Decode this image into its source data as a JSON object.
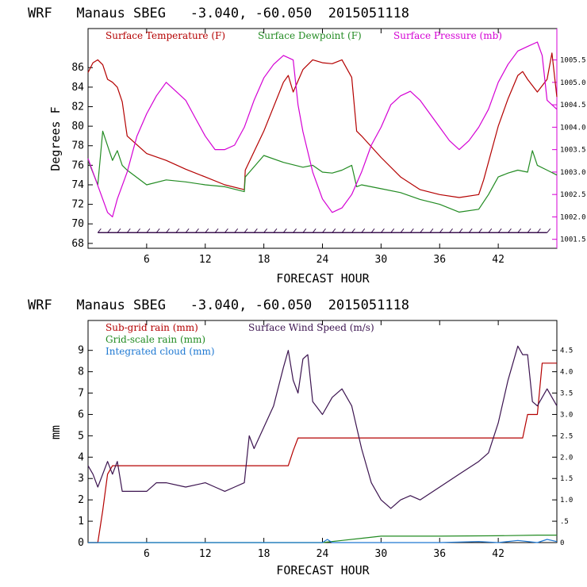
{
  "chart_data": [
    {
      "type": "line",
      "title": "WRF   Manaus SBEG   -3.040, -60.050  2015051118",
      "xlabel": "FORECAST HOUR",
      "ylabel": "Degrees F",
      "xlim": [
        0,
        48
      ],
      "ylim": [
        67.5,
        90
      ],
      "y2lim": [
        1001.3,
        1006.2
      ],
      "x_ticks": [
        "6",
        "12",
        "18",
        "24",
        "30",
        "36",
        "42"
      ],
      "y_ticks": [
        "68",
        "70",
        "72",
        "74",
        "76",
        "78",
        "80",
        "82",
        "84",
        "86"
      ],
      "y2_ticks": [
        "1001.5",
        "1002.0",
        "1002.5",
        "1003.0",
        "1003.5",
        "1004.0",
        "1004.5",
        "1005.0",
        "1005.5"
      ],
      "grid": false,
      "legend_position": "top",
      "series": [
        {
          "name": "Surface Temperature (F)",
          "color": "#b40000",
          "axis": "left",
          "x": [
            0,
            0.5,
            1,
            1.5,
            2,
            2.5,
            3,
            3.5,
            4,
            6,
            8,
            10,
            12,
            14,
            16,
            16.1,
            18,
            20,
            20.5,
            21,
            22,
            23,
            24,
            25,
            26,
            27,
            27.5,
            28,
            30,
            32,
            34,
            36,
            38,
            40,
            40.5,
            42,
            43,
            44,
            44.5,
            45,
            46,
            47,
            47.5,
            48
          ],
          "values": [
            85.5,
            86.5,
            86.8,
            86.3,
            84.8,
            84.5,
            84,
            82.5,
            79,
            77.2,
            76.5,
            75.6,
            74.8,
            74,
            73.5,
            75.5,
            79.5,
            84.5,
            85.2,
            83.5,
            85.8,
            86.8,
            86.5,
            86.4,
            86.8,
            85,
            79.5,
            79,
            76.8,
            74.8,
            73.5,
            73,
            72.7,
            73,
            74.5,
            80,
            82.8,
            85.2,
            85.6,
            84.8,
            83.5,
            84.8,
            87.5,
            83
          ]
        },
        {
          "name": "Surface Dewpoint (F)",
          "color": "#228b22",
          "axis": "left",
          "x": [
            0,
            1,
            1.5,
            2,
            2.5,
            3,
            3.5,
            4,
            6,
            8,
            10,
            12,
            14,
            16,
            16.1,
            18,
            20,
            22,
            23,
            24,
            25,
            26,
            27,
            27.5,
            28,
            30,
            32,
            34,
            36,
            38,
            40,
            41,
            42,
            43,
            44,
            45,
            45.5,
            46,
            47,
            48
          ],
          "values": [
            76.5,
            74,
            79.5,
            78,
            76.5,
            77.5,
            76,
            75.5,
            74,
            74.5,
            74.3,
            74,
            73.8,
            73.3,
            74.8,
            77,
            76.3,
            75.8,
            76,
            75.3,
            75.2,
            75.5,
            76,
            73.8,
            74,
            73.6,
            73.2,
            72.5,
            72,
            71.2,
            71.5,
            73,
            74.8,
            75.2,
            75.5,
            75.3,
            77.5,
            76,
            75.5,
            75
          ]
        },
        {
          "name": "Surface Pressure (mb)",
          "color": "#d400d4",
          "axis": "right",
          "x": [
            0,
            1,
            2,
            2.5,
            3,
            4,
            5,
            6,
            7,
            8,
            9,
            10,
            11,
            12,
            13,
            14,
            15,
            16,
            17,
            18,
            19,
            20,
            21,
            21.5,
            22,
            23,
            24,
            25,
            26,
            27,
            28,
            29,
            30,
            31,
            32,
            33,
            34,
            35,
            36,
            37,
            38,
            39,
            40,
            41,
            42,
            43,
            44,
            45,
            46,
            46.5,
            47,
            48
          ],
          "values": [
            1003.3,
            1002.7,
            1002.1,
            1002.0,
            1002.4,
            1003.0,
            1003.8,
            1004.3,
            1004.7,
            1005.0,
            1004.8,
            1004.6,
            1004.2,
            1003.8,
            1003.5,
            1003.5,
            1003.6,
            1004.0,
            1004.6,
            1005.1,
            1005.4,
            1005.6,
            1005.5,
            1004.5,
            1003.9,
            1003.0,
            1002.4,
            1002.1,
            1002.2,
            1002.5,
            1003.0,
            1003.6,
            1004.0,
            1004.5,
            1004.7,
            1004.8,
            1004.6,
            1004.3,
            1004.0,
            1003.7,
            1003.5,
            1003.7,
            1004.0,
            1004.4,
            1005.0,
            1005.4,
            1005.7,
            1005.8,
            1005.9,
            1005.6,
            1004.6,
            1004.4
          ]
        }
      ],
      "wind_barbs": {
        "color": "#3c1450",
        "level": 69.1,
        "hours": [
          1,
          2,
          3,
          4,
          5,
          6,
          7,
          8,
          9,
          10,
          11,
          12,
          13,
          14,
          15,
          16,
          17,
          18,
          19,
          20,
          21,
          22,
          23,
          24,
          25,
          26,
          27,
          28,
          29,
          30,
          31,
          32,
          33,
          34,
          35,
          36,
          37,
          38,
          39,
          40,
          41,
          42,
          43,
          44,
          45,
          46,
          47
        ]
      }
    },
    {
      "type": "line",
      "title": "WRF   Manaus SBEG   -3.040, -60.050  2015051118",
      "xlabel": "FORECAST HOUR",
      "ylabel": "mm",
      "xlim": [
        0,
        48
      ],
      "ylim": [
        0,
        10.4
      ],
      "y2lim": [
        0,
        5.2
      ],
      "x_ticks": [
        "6",
        "12",
        "18",
        "24",
        "30",
        "36",
        "42"
      ],
      "y_ticks": [
        "0",
        "1",
        "2",
        "3",
        "4",
        "5",
        "6",
        "7",
        "8",
        "9"
      ],
      "y2_ticks": [
        "0",
        ".5",
        "1.0",
        "1.5",
        "2.0",
        "2.5",
        "3.0",
        "3.5",
        "4.0",
        "4.5"
      ],
      "grid": false,
      "legend_position": "top-left",
      "series": [
        {
          "name": "Sub-grid rain (mm)",
          "color": "#b40000",
          "axis": "left",
          "x": [
            0,
            1,
            1.5,
            2,
            2.5,
            3,
            16,
            20.5,
            21,
            21.5,
            41,
            44.5,
            45,
            46,
            46.5,
            48
          ],
          "values": [
            0,
            0,
            1.5,
            3.2,
            3.6,
            3.6,
            3.6,
            3.6,
            4.3,
            4.9,
            4.9,
            4.9,
            6,
            6,
            8.4,
            8.4
          ]
        },
        {
          "name": "Grid-scale rain (mm)",
          "color": "#228b22",
          "axis": "left",
          "x": [
            0,
            24,
            26,
            28,
            30,
            36,
            42,
            46,
            48
          ],
          "values": [
            0,
            0,
            0.1,
            0.2,
            0.3,
            0.3,
            0.32,
            0.35,
            0.35
          ]
        },
        {
          "name": "Integrated cloud (mm)",
          "color": "#1e78d2",
          "axis": "left",
          "x": [
            0,
            20,
            24,
            24.5,
            25,
            30,
            36,
            40,
            42,
            44,
            46,
            47,
            48
          ],
          "values": [
            0,
            0,
            0,
            0.15,
            0,
            0,
            0,
            0.05,
            0,
            0.1,
            0,
            0.15,
            0.05
          ]
        },
        {
          "name": "Surface Wind Speed (m/s)",
          "color": "#3c1450",
          "axis": "right",
          "x": [
            0,
            0.5,
            1,
            2,
            2.5,
            3,
            3.5,
            4,
            6,
            7,
            8,
            10,
            12,
            13,
            14,
            15,
            16,
            16.5,
            17,
            18,
            19,
            20,
            20.5,
            21,
            21.5,
            22,
            22.5,
            23,
            24,
            25,
            26,
            27,
            28,
            29,
            30,
            31,
            32,
            33,
            34,
            36,
            38,
            40,
            41,
            42,
            43,
            44,
            44.5,
            45,
            45.5,
            46,
            47,
            48
          ],
          "values": [
            1.8,
            1.6,
            1.3,
            1.9,
            1.6,
            1.9,
            1.2,
            1.2,
            1.2,
            1.4,
            1.4,
            1.3,
            1.4,
            1.3,
            1.2,
            1.3,
            1.4,
            2.5,
            2.2,
            2.7,
            3.2,
            4.1,
            4.5,
            3.8,
            3.5,
            4.3,
            4.4,
            3.3,
            3.0,
            3.4,
            3.6,
            3.2,
            2.2,
            1.4,
            1.0,
            0.8,
            1.0,
            1.1,
            1.0,
            1.3,
            1.6,
            1.9,
            2.1,
            2.8,
            3.8,
            4.6,
            4.4,
            4.4,
            3.3,
            3.2,
            3.6,
            3.2
          ]
        }
      ]
    }
  ]
}
